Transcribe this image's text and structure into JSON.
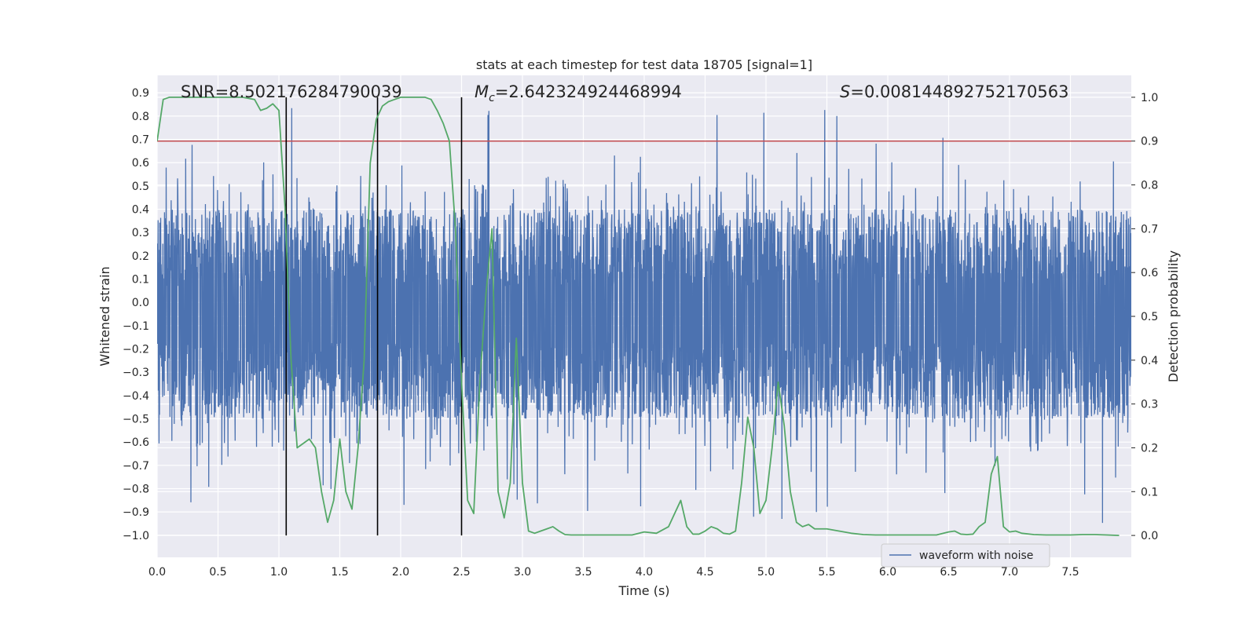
{
  "chart_data": {
    "type": "line",
    "title": "stats at each timestep for test data 18705 [signal=1]",
    "xlabel": "Time (s)",
    "ylabel": "Whitened strain",
    "ylabel_right": "Detection probability",
    "xlim": [
      0.0,
      8.0
    ],
    "ylim": [
      -1.095,
      0.975
    ],
    "ylim_right": [
      -0.05,
      1.05
    ],
    "x_ticks": [
      "0.0",
      "0.5",
      "1.0",
      "1.5",
      "2.0",
      "2.5",
      "3.0",
      "3.5",
      "4.0",
      "4.5",
      "5.0",
      "5.5",
      "6.0",
      "6.5",
      "7.0",
      "7.5"
    ],
    "x_tick_values": [
      0.0,
      0.5,
      1.0,
      1.5,
      2.0,
      2.5,
      3.0,
      3.5,
      4.0,
      4.5,
      5.0,
      5.5,
      6.0,
      6.5,
      7.0,
      7.5
    ],
    "y_ticks": [
      "0.9",
      "0.8",
      "0.7",
      "0.6",
      "0.5",
      "0.4",
      "0.3",
      "0.2",
      "0.1",
      "0.0",
      "−0.1",
      "−0.2",
      "−0.3",
      "−0.4",
      "−0.5",
      "−0.6",
      "−0.7",
      "−0.8",
      "−0.9",
      "−1.0"
    ],
    "y_tick_values": [
      0.9,
      0.8,
      0.7,
      0.6,
      0.5,
      0.4,
      0.3,
      0.2,
      0.1,
      0.0,
      -0.1,
      -0.2,
      -0.3,
      -0.4,
      -0.5,
      -0.6,
      -0.7,
      -0.8,
      -0.9,
      -1.0
    ],
    "y_right_ticks": [
      "1.0",
      "0.9",
      "0.8",
      "0.7",
      "0.6",
      "0.5",
      "0.4",
      "0.3",
      "0.2",
      "0.1",
      "0.0"
    ],
    "y_right_tick_values": [
      1.0,
      0.9,
      0.8,
      0.7,
      0.6,
      0.5,
      0.4,
      0.3,
      0.2,
      0.1,
      0.0
    ],
    "annotations": {
      "snr": "SNR=8.502176284790039",
      "mc_symbol": "M",
      "mc_sub": "c",
      "mc_value": "=2.642324924468994",
      "s_symbol": "S",
      "s_value": "=0.008144892752170563"
    },
    "threshold": {
      "value": 0.9,
      "axis": "right",
      "color": "#c44e52"
    },
    "vlines": [
      1.06,
      1.81,
      2.5
    ],
    "series": [
      {
        "name": "waveform with noise",
        "axis": "left",
        "color": "#4c72b0",
        "description": "noisy whitened strain, roughly ±0.45 with spikes to ±0.9",
        "x_range": [
          0.0,
          8.0
        ],
        "sample_rate": 512
      },
      {
        "name": "detection probability",
        "axis": "right",
        "color": "#55a868",
        "x": [
          0.0,
          0.05,
          0.1,
          0.2,
          0.3,
          0.4,
          0.5,
          0.6,
          0.7,
          0.8,
          0.85,
          0.9,
          0.95,
          1.0,
          1.05,
          1.1,
          1.15,
          1.2,
          1.25,
          1.3,
          1.35,
          1.4,
          1.45,
          1.5,
          1.55,
          1.6,
          1.65,
          1.7,
          1.75,
          1.8,
          1.85,
          1.9,
          1.95,
          2.0,
          2.05,
          2.1,
          2.15,
          2.2,
          2.25,
          2.3,
          2.35,
          2.4,
          2.45,
          2.5,
          2.55,
          2.6,
          2.65,
          2.7,
          2.75,
          2.8,
          2.85,
          2.9,
          2.95,
          3.0,
          3.05,
          3.1,
          3.15,
          3.2,
          3.25,
          3.3,
          3.35,
          3.4,
          3.5,
          3.6,
          3.7,
          3.8,
          3.9,
          4.0,
          4.1,
          4.2,
          4.25,
          4.3,
          4.35,
          4.4,
          4.45,
          4.5,
          4.55,
          4.6,
          4.65,
          4.7,
          4.75,
          4.8,
          4.85,
          4.9,
          4.95,
          5.0,
          5.05,
          5.1,
          5.15,
          5.2,
          5.25,
          5.3,
          5.35,
          5.4,
          5.5,
          5.6,
          5.7,
          5.8,
          5.9,
          6.0,
          6.1,
          6.2,
          6.3,
          6.4,
          6.5,
          6.55,
          6.6,
          6.65,
          6.7,
          6.75,
          6.8,
          6.85,
          6.9,
          6.95,
          7.0,
          7.05,
          7.1,
          7.2,
          7.3,
          7.4,
          7.5,
          7.6,
          7.7,
          7.8,
          7.9
        ],
        "values": [
          0.9,
          0.995,
          1.0,
          1.0,
          1.0,
          1.0,
          1.0,
          1.0,
          1.0,
          0.995,
          0.97,
          0.975,
          0.985,
          0.97,
          0.75,
          0.4,
          0.2,
          0.21,
          0.22,
          0.2,
          0.1,
          0.03,
          0.08,
          0.22,
          0.1,
          0.06,
          0.2,
          0.4,
          0.85,
          0.95,
          0.98,
          0.99,
          0.995,
          1.0,
          1.0,
          1.0,
          1.0,
          1.0,
          0.995,
          0.97,
          0.94,
          0.9,
          0.7,
          0.35,
          0.08,
          0.05,
          0.35,
          0.55,
          0.7,
          0.1,
          0.04,
          0.12,
          0.45,
          0.12,
          0.01,
          0.005,
          0.01,
          0.015,
          0.02,
          0.01,
          0.002,
          0.001,
          0.001,
          0.001,
          0.001,
          0.001,
          0.001,
          0.008,
          0.005,
          0.02,
          0.05,
          0.08,
          0.02,
          0.003,
          0.003,
          0.01,
          0.02,
          0.015,
          0.005,
          0.003,
          0.01,
          0.12,
          0.27,
          0.2,
          0.05,
          0.08,
          0.2,
          0.35,
          0.25,
          0.1,
          0.03,
          0.02,
          0.025,
          0.015,
          0.015,
          0.01,
          0.005,
          0.002,
          0.001,
          0.001,
          0.001,
          0.001,
          0.001,
          0.001,
          0.008,
          0.01,
          0.003,
          0.002,
          0.003,
          0.02,
          0.03,
          0.14,
          0.18,
          0.02,
          0.008,
          0.01,
          0.005,
          0.002,
          0.001,
          0.001,
          0.001,
          0.002,
          0.002,
          0.001,
          0.0
        ]
      }
    ],
    "legend": {
      "entries": [
        "waveform with noise"
      ],
      "location": "lower right"
    },
    "grid": true
  }
}
